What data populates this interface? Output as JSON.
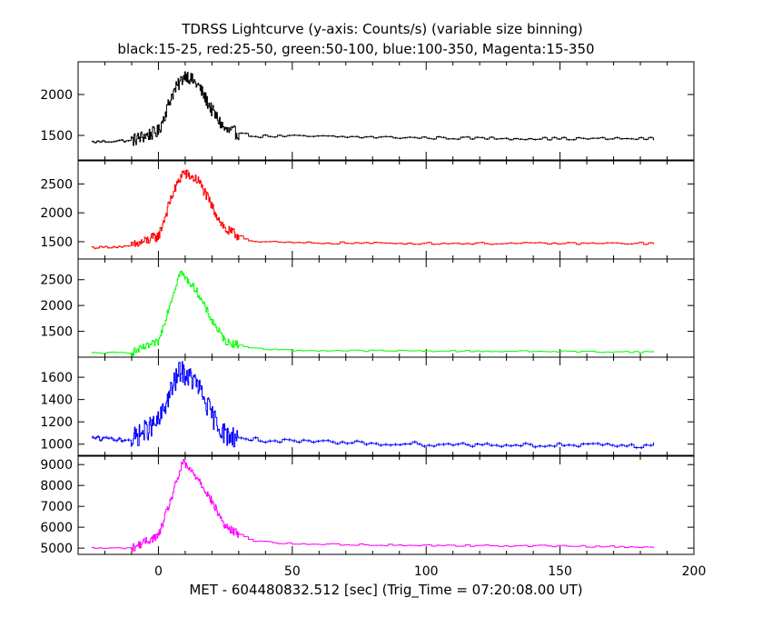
{
  "header": {
    "title": "TDRSS Lightcurve (y-axis: Counts/s) (variable size binning)",
    "subtitle": "black:15-25, red:25-50, green:50-100, blue:100-350, Magenta:15-350"
  },
  "chart_data": {
    "type": "line",
    "title": "TDRSS Lightcurve (y-axis: Counts/s) (variable size binning)",
    "subtitle": "black:15-25, red:25-50, green:50-100, blue:100-350, Magenta:15-350",
    "xlabel": "MET - 604480832.512 [sec] (Trig_Time = 07:20:08.00 UT)",
    "xlim": [
      -30,
      200
    ],
    "xticks": [
      0,
      50,
      100,
      150,
      200
    ],
    "xtick_labels": [
      "0",
      "50",
      "100",
      "150",
      "200"
    ],
    "x_extent": [
      -25,
      185
    ],
    "grid": false,
    "panels": [
      {
        "band": "15-25",
        "color": "#000000",
        "ylim": [
          1200,
          2400
        ],
        "yticks": [
          1500,
          2000
        ],
        "ytick_labels": [
          "1500",
          "2000"
        ],
        "baseline": 1430,
        "late_level": 1470,
        "peak": 2250,
        "peak_time": 10,
        "noise": 45,
        "x_samples": [
          -25,
          -10,
          0,
          5,
          10,
          15,
          20,
          25,
          35,
          50,
          100,
          150,
          185
        ],
        "values": [
          1420,
          1440,
          1550,
          2000,
          2250,
          2100,
          1800,
          1560,
          1490,
          1490,
          1470,
          1460,
          1460
        ]
      },
      {
        "band": "25-50",
        "color": "#ff0000",
        "ylim": [
          1200,
          2900
        ],
        "yticks": [
          1500,
          2000,
          2500
        ],
        "ytick_labels": [
          "1500",
          "2000",
          "2500"
        ],
        "baseline": 1410,
        "late_level": 1470,
        "peak": 2700,
        "peak_time": 9,
        "noise": 50,
        "x_samples": [
          -25,
          -10,
          0,
          5,
          9,
          15,
          20,
          25,
          35,
          50,
          100,
          150,
          185
        ],
        "values": [
          1400,
          1420,
          1600,
          2300,
          2700,
          2550,
          2100,
          1700,
          1500,
          1480,
          1470,
          1470,
          1470
        ]
      },
      {
        "band": "50-100",
        "color": "#00ff00",
        "ylim": [
          1000,
          2900
        ],
        "yticks": [
          1500,
          2000,
          2500
        ],
        "ytick_labels": [
          "1500",
          "2000",
          "2500"
        ],
        "baseline": 1080,
        "late_level": 1130,
        "peak": 2650,
        "peak_time": 8,
        "noise": 40,
        "x_samples": [
          -25,
          -10,
          0,
          4,
          8,
          14,
          20,
          25,
          35,
          50,
          100,
          150,
          185
        ],
        "values": [
          1080,
          1090,
          1300,
          2000,
          2650,
          2300,
          1700,
          1300,
          1170,
          1130,
          1120,
          1110,
          1100
        ]
      },
      {
        "band": "100-350",
        "color": "#0000ff",
        "ylim": [
          900,
          1780
        ],
        "yticks": [
          1000,
          1200,
          1400,
          1600
        ],
        "ytick_labels": [
          "1000",
          "1200",
          "1400",
          "1600"
        ],
        "baseline": 1040,
        "late_level": 1000,
        "peak": 1660,
        "peak_time": 8,
        "noise": 55,
        "x_samples": [
          -25,
          -10,
          0,
          5,
          8,
          14,
          20,
          25,
          35,
          50,
          100,
          150,
          185
        ],
        "values": [
          1050,
          1040,
          1200,
          1500,
          1660,
          1550,
          1250,
          1080,
          1040,
          1020,
          1000,
          990,
          985
        ]
      },
      {
        "band": "15-350",
        "color": "#ff00ff",
        "ylim": [
          4700,
          9400
        ],
        "yticks": [
          5000,
          6000,
          7000,
          8000,
          9000
        ],
        "ytick_labels": [
          "5000",
          "6000",
          "7000",
          "8000",
          "9000"
        ],
        "baseline": 5000,
        "late_level": 5150,
        "peak": 9100,
        "peak_time": 9,
        "noise": 110,
        "x_samples": [
          -25,
          -10,
          0,
          5,
          9,
          15,
          20,
          25,
          35,
          50,
          100,
          150,
          185
        ],
        "values": [
          5000,
          5000,
          5600,
          7500,
          9100,
          8300,
          7200,
          6000,
          5350,
          5200,
          5130,
          5100,
          5050
        ]
      }
    ]
  }
}
